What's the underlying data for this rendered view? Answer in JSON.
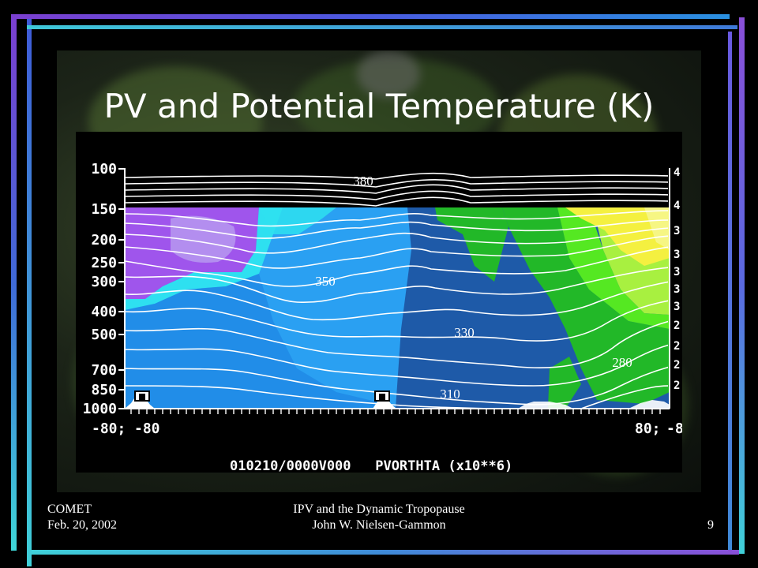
{
  "slide": {
    "title": "PV and Potential Temperature (K)",
    "page_number": "9"
  },
  "footer": {
    "left_line1": "COMET",
    "left_line2": "Feb. 20, 2002",
    "center_line1": "IPV and the Dynamic Tropopause",
    "center_line2": "John W. Nielsen-Gammon"
  },
  "cross_section": {
    "pressure_levels": [
      "100",
      "150",
      "200",
      "250",
      "300",
      "400",
      "500",
      "700",
      "850",
      "1000"
    ],
    "x_left_labels": [
      "-80;",
      "-80"
    ],
    "x_right_labels": [
      "80;",
      "-8"
    ],
    "theta_labels": [
      "380",
      "350",
      "330",
      "310",
      "280"
    ],
    "caption": "010210/0000V000   PVORTHTA (x10**6)",
    "right_edge_digits": [
      "4",
      "4",
      "3",
      "3",
      "3",
      "3",
      "3",
      "2",
      "2",
      "2",
      "2"
    ]
  },
  "colors": {
    "slide_bg": "#000000",
    "frame_purple": "#8a4fd8",
    "frame_blue": "#4a6ae0",
    "frame_cyan": "#40e0d8",
    "pv_purple": "#9f55ec",
    "pv_lavender": "#b89cf0",
    "pv_cyan": "#2ee0f0",
    "pv_light_blue": "#2aa0f2",
    "pv_mid_blue": "#1a7ee0",
    "pv_dark_blue": "#1e5aa8",
    "pv_green": "#22b828",
    "pv_bright_green": "#55e822",
    "pv_yellow_green": "#a8f040",
    "pv_yellow": "#f4f040"
  }
}
